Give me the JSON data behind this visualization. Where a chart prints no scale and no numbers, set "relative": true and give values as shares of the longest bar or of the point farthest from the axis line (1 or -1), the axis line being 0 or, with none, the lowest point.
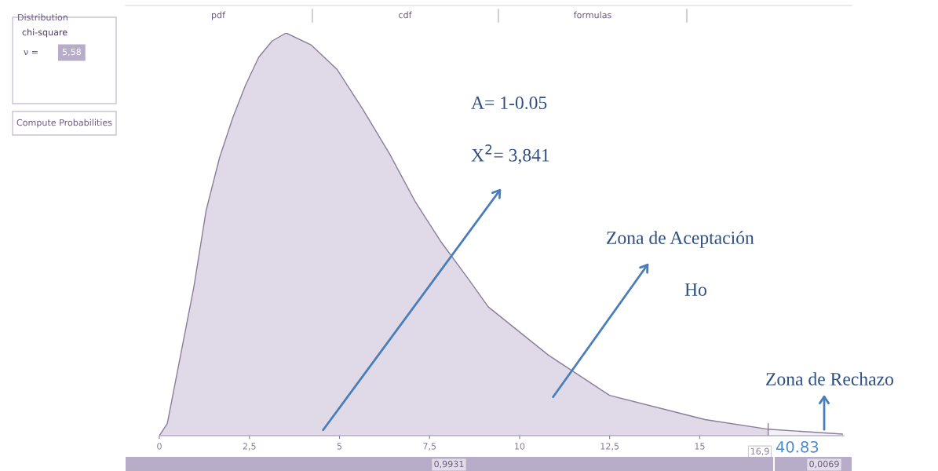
{
  "chart_data": {
    "type": "area",
    "relative": true,
    "series": [
      {
        "color": "#e0d9e7",
        "x": [
          0,
          0.22,
          0.59,
          0.96,
          1.3,
          1.67,
          2.04,
          2.39,
          2.76,
          3.13,
          3.52,
          4.22,
          4.93,
          5.65,
          6.39,
          7.11,
          7.83,
          8.57,
          9.13,
          10.8,
          12.5,
          15.15,
          16.9
        ],
        "values": [
          0,
          0.03,
          0.2,
          0.37,
          0.56,
          0.69,
          0.79,
          0.87,
          0.94,
          0.98,
          1.0,
          0.97,
          0.91,
          0.81,
          0.7,
          0.58,
          0.48,
          0.39,
          0.32,
          0.2,
          0.1,
          0.04,
          0.016
        ]
      },
      {
        "color": "#f3f0f6",
        "x": [
          16.9,
          18.96
        ],
        "values": [
          0.016,
          0.004
        ]
      }
    ],
    "xlim": [
      0,
      19
    ],
    "xticks": [
      0,
      {
        "value": 2.5,
        "label": "2,5"
      },
      5,
      {
        "value": 7.5,
        "label": "7,5"
      },
      10,
      {
        "value": 12.5,
        "label": "12,5"
      },
      15
    ],
    "ref_lines": [
      {
        "axis": "x",
        "value": 16.9,
        "label": "16,9",
        "color": "#8a7d99"
      }
    ],
    "grid": false,
    "legend": false,
    "annotations": [
      "pdf",
      "cdf",
      "formulas",
      "Distribution",
      "chi-square",
      "ν =",
      "5,58",
      "Compute Probabilities",
      "A= 1-0.05",
      "X$^{2}$= 3,841",
      "Zona de Aceptación",
      "Ho",
      "Zona de Rechazo",
      "40.83",
      "0,9931",
      "0,0069"
    ]
  }
}
